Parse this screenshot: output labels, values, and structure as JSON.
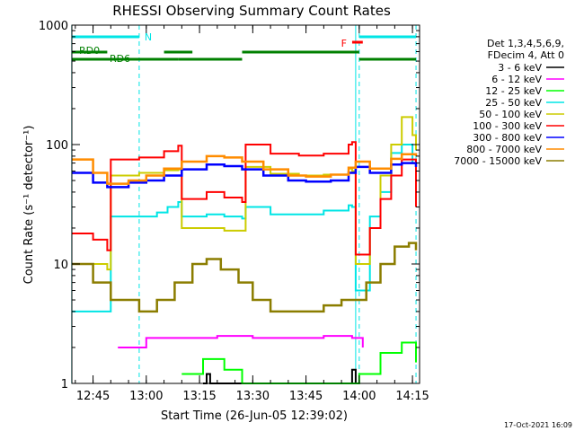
{
  "chart_data": {
    "type": "line",
    "title": "RHESSI Observing Summary Count Rates",
    "xlabel": "Start Time (26-Jun-05 12:39:02)",
    "ylabel": "Count Rate (s⁻¹ detector⁻¹)",
    "y_scale": "log",
    "ylim": [
      1,
      1000
    ],
    "xlim": [
      "12:39:02",
      "14:17:00"
    ],
    "x_ticks": [
      "12:45",
      "13:00",
      "13:15",
      "13:30",
      "13:45",
      "14:00",
      "14:15"
    ],
    "y_ticks": [
      "1",
      "10",
      "100",
      "1000"
    ],
    "grid": false,
    "legend_position": "top-right",
    "legend_header": [
      "Det 1,3,4,5,6,9,",
      "FDecim 4, Att 0"
    ],
    "footer_date": "17-Oct-2021 16:09",
    "status_bars": [
      {
        "label": "N",
        "color": "#00e5e5",
        "segments": [
          [
            "12:39",
            "12:58"
          ],
          [
            "14:00",
            "14:16"
          ]
        ]
      },
      {
        "label": "F",
        "color": "#ff0000",
        "segments": [
          [
            "13:58",
            "14:01"
          ]
        ]
      },
      {
        "label": "RD0",
        "color": "#008000",
        "segments": [
          [
            "12:39",
            "12:49"
          ],
          [
            "13:05",
            "13:13"
          ],
          [
            "13:27",
            "14:00"
          ]
        ]
      },
      {
        "label": "RD6",
        "color": "#008000",
        "segments": [
          [
            "12:39",
            "13:09"
          ],
          [
            "13:09",
            "13:27"
          ],
          [
            "14:00",
            "14:16"
          ]
        ]
      }
    ],
    "dashed_markers": [
      "12:58",
      "14:00",
      "14:16"
    ],
    "solid_markers": [
      "12:39",
      "13:59"
    ],
    "series": [
      {
        "name": "3 - 6 keV",
        "color": "#000000",
        "points": [
          [
            "13:16",
            1.0
          ],
          [
            "13:17",
            1.2
          ],
          [
            "13:18",
            1.0
          ],
          [
            "13:57",
            1.0
          ],
          [
            "13:58",
            1.3
          ],
          [
            "13:59",
            1.0
          ]
        ]
      },
      {
        "name": "6 - 12 keV",
        "color": "#ff00ff",
        "points": [
          [
            "12:52",
            2.0
          ],
          [
            "13:00",
            2.4
          ],
          [
            "13:10",
            2.4
          ],
          [
            "13:20",
            2.5
          ],
          [
            "13:30",
            2.4
          ],
          [
            "13:40",
            2.4
          ],
          [
            "13:50",
            2.5
          ],
          [
            "13:58",
            2.4
          ],
          [
            "14:01",
            2.0
          ]
        ]
      },
      {
        "name": "12 - 25 keV",
        "color": "#00ff00",
        "points": [
          [
            "13:10",
            1.2
          ],
          [
            "13:16",
            1.6
          ],
          [
            "13:22",
            1.3
          ],
          [
            "13:27",
            1.0
          ],
          [
            "14:00",
            1.2
          ],
          [
            "14:06",
            1.8
          ],
          [
            "14:12",
            2.2
          ],
          [
            "14:16",
            1.5
          ]
        ]
      },
      {
        "name": "25 - 50 keV",
        "color": "#00e5e5",
        "points": [
          [
            "12:39",
            4.0
          ],
          [
            "12:49",
            4.0
          ],
          [
            "12:50",
            25
          ],
          [
            "12:58",
            25
          ],
          [
            "13:03",
            27
          ],
          [
            "13:06",
            30
          ],
          [
            "13:09",
            33
          ],
          [
            "13:10",
            25
          ],
          [
            "13:17",
            26
          ],
          [
            "13:22",
            25
          ],
          [
            "13:27",
            24
          ],
          [
            "13:28",
            30
          ],
          [
            "13:35",
            26
          ],
          [
            "13:43",
            26
          ],
          [
            "13:50",
            28
          ],
          [
            "13:57",
            31
          ],
          [
            "13:58",
            30
          ],
          [
            "13:59",
            6
          ],
          [
            "14:03",
            25
          ],
          [
            "14:06",
            40
          ],
          [
            "14:09",
            85
          ],
          [
            "14:12",
            100
          ],
          [
            "14:15",
            70
          ],
          [
            "14:16",
            50
          ]
        ]
      },
      {
        "name": "50 - 100 keV",
        "color": "#cccc00",
        "points": [
          [
            "12:39",
            10
          ],
          [
            "12:49",
            9
          ],
          [
            "12:50",
            55
          ],
          [
            "12:58",
            58
          ],
          [
            "13:05",
            61
          ],
          [
            "13:09",
            62
          ],
          [
            "13:10",
            20
          ],
          [
            "13:17",
            20
          ],
          [
            "13:22",
            19
          ],
          [
            "13:27",
            19
          ],
          [
            "13:28",
            65
          ],
          [
            "13:35",
            57
          ],
          [
            "13:43",
            55
          ],
          [
            "13:50",
            56
          ],
          [
            "13:57",
            63
          ],
          [
            "13:58",
            60
          ],
          [
            "13:59",
            10
          ],
          [
            "14:03",
            20
          ],
          [
            "14:06",
            55
          ],
          [
            "14:09",
            100
          ],
          [
            "14:12",
            170
          ],
          [
            "14:15",
            120
          ],
          [
            "14:16",
            90
          ]
        ]
      },
      {
        "name": "100 - 300 keV",
        "color": "#ff0000",
        "points": [
          [
            "12:39",
            18
          ],
          [
            "12:45",
            16
          ],
          [
            "12:49",
            13
          ],
          [
            "12:50",
            75
          ],
          [
            "12:58",
            78
          ],
          [
            "13:05",
            88
          ],
          [
            "13:09",
            98
          ],
          [
            "13:10",
            35
          ],
          [
            "13:17",
            40
          ],
          [
            "13:22",
            36
          ],
          [
            "13:27",
            33
          ],
          [
            "13:28",
            100
          ],
          [
            "13:35",
            84
          ],
          [
            "13:43",
            81
          ],
          [
            "13:50",
            84
          ],
          [
            "13:57",
            100
          ],
          [
            "13:58",
            105
          ],
          [
            "13:59",
            12
          ],
          [
            "14:03",
            20
          ],
          [
            "14:06",
            35
          ],
          [
            "14:09",
            55
          ],
          [
            "14:12",
            75
          ],
          [
            "14:16",
            30
          ]
        ]
      },
      {
        "name": "300 - 800 keV",
        "color": "#0000ff",
        "points": [
          [
            "12:39",
            58
          ],
          [
            "12:45",
            48
          ],
          [
            "12:49",
            44
          ],
          [
            "12:55",
            48
          ],
          [
            "13:00",
            50
          ],
          [
            "13:05",
            55
          ],
          [
            "13:10",
            62
          ],
          [
            "13:17",
            68
          ],
          [
            "13:22",
            66
          ],
          [
            "13:27",
            62
          ],
          [
            "13:33",
            55
          ],
          [
            "13:40",
            50
          ],
          [
            "13:45",
            49
          ],
          [
            "13:52",
            50
          ],
          [
            "13:57",
            58
          ],
          [
            "13:59",
            65
          ],
          [
            "14:03",
            58
          ],
          [
            "14:09",
            68
          ],
          [
            "14:12",
            70
          ],
          [
            "14:16",
            65
          ]
        ]
      },
      {
        "name": "800 - 7000 keV",
        "color": "#ff8c00",
        "points": [
          [
            "12:39",
            75
          ],
          [
            "12:45",
            58
          ],
          [
            "12:49",
            47
          ],
          [
            "12:55",
            50
          ],
          [
            "13:00",
            55
          ],
          [
            "13:05",
            63
          ],
          [
            "13:10",
            72
          ],
          [
            "13:17",
            80
          ],
          [
            "13:22",
            78
          ],
          [
            "13:27",
            72
          ],
          [
            "13:33",
            62
          ],
          [
            "13:40",
            55
          ],
          [
            "13:45",
            54
          ],
          [
            "13:52",
            56
          ],
          [
            "13:57",
            64
          ],
          [
            "13:59",
            72
          ],
          [
            "14:03",
            63
          ],
          [
            "14:09",
            76
          ],
          [
            "14:12",
            83
          ],
          [
            "14:16",
            80
          ]
        ]
      },
      {
        "name": "7000 - 15000 keV",
        "color": "#8b7d00",
        "points": [
          [
            "12:39",
            10
          ],
          [
            "12:45",
            7
          ],
          [
            "12:50",
            5
          ],
          [
            "12:58",
            4
          ],
          [
            "13:03",
            5
          ],
          [
            "13:08",
            7
          ],
          [
            "13:13",
            10
          ],
          [
            "13:17",
            11
          ],
          [
            "13:21",
            9
          ],
          [
            "13:26",
            7
          ],
          [
            "13:30",
            5
          ],
          [
            "13:35",
            4
          ],
          [
            "13:43",
            4
          ],
          [
            "13:50",
            4.5
          ],
          [
            "13:55",
            5
          ],
          [
            "13:59",
            5
          ],
          [
            "14:02",
            7
          ],
          [
            "14:06",
            10
          ],
          [
            "14:10",
            14
          ],
          [
            "14:14",
            15
          ],
          [
            "14:16",
            13
          ]
        ]
      }
    ]
  }
}
